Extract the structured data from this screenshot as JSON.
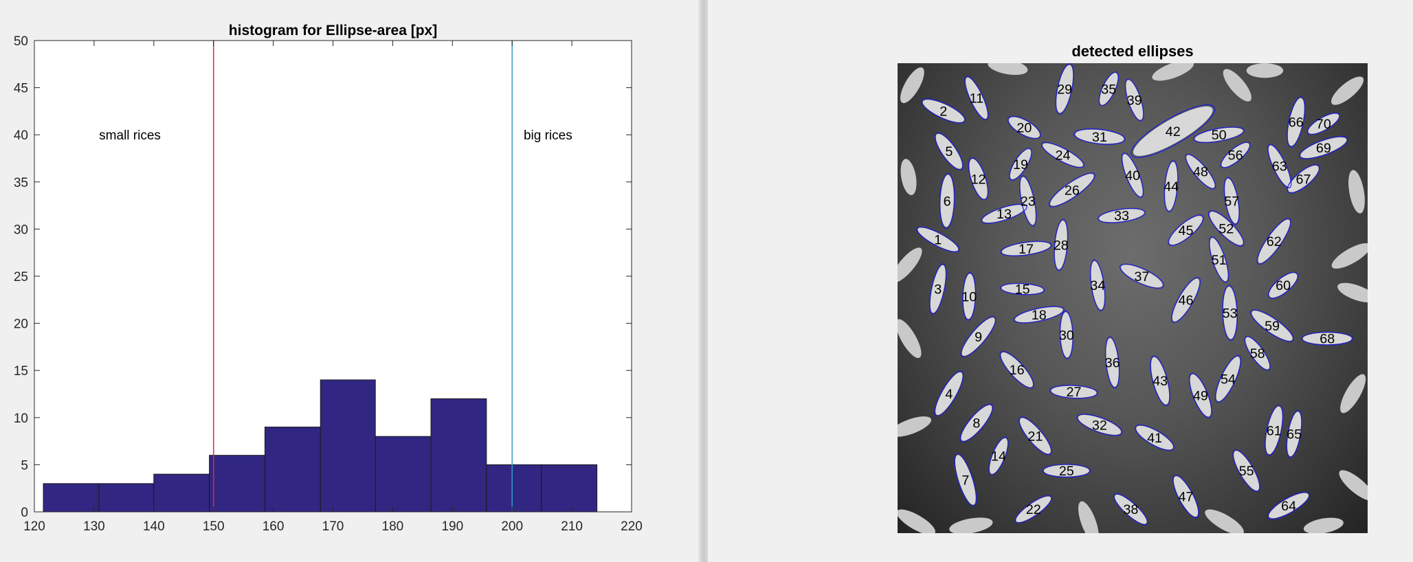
{
  "chart_data": [
    {
      "type": "bar",
      "title": "histogram for Ellipse-area [px]",
      "xlim": [
        120,
        220
      ],
      "ylim": [
        0,
        50
      ],
      "xticks": [
        120,
        130,
        140,
        150,
        160,
        170,
        180,
        190,
        200,
        210,
        220
      ],
      "yticks": [
        0,
        5,
        10,
        15,
        20,
        25,
        30,
        35,
        40,
        45,
        50
      ],
      "bins": [
        {
          "start": 121.5,
          "end": 130.8,
          "count": 3
        },
        {
          "start": 130.8,
          "end": 140.0,
          "count": 3
        },
        {
          "start": 140.0,
          "end": 149.3,
          "count": 4
        },
        {
          "start": 149.3,
          "end": 158.6,
          "count": 6
        },
        {
          "start": 158.6,
          "end": 167.9,
          "count": 9
        },
        {
          "start": 167.9,
          "end": 177.1,
          "count": 14
        },
        {
          "start": 177.1,
          "end": 186.4,
          "count": 8
        },
        {
          "start": 186.4,
          "end": 195.7,
          "count": 12
        },
        {
          "start": 195.7,
          "end": 204.9,
          "count": 5
        },
        {
          "start": 204.9,
          "end": 214.2,
          "count": 5
        }
      ],
      "bar_color": "#312783",
      "threshold_lines": [
        {
          "x": 150,
          "color": "#e8282a"
        },
        {
          "x": 200,
          "color": "#2b9fcf"
        }
      ],
      "annotations": [
        {
          "text": "small rices",
          "x": 136,
          "y": 40
        },
        {
          "text": "big rices",
          "x": 206,
          "y": 40
        }
      ],
      "grid": false
    },
    {
      "type": "image",
      "title": "detected ellipses",
      "ellipse_color": "#1c1ce0",
      "image_size": [
        256,
        256
      ],
      "ellipses": [
        {
          "id": "1",
          "x": 22,
          "y": 96,
          "rx": 13,
          "ry": 3.5,
          "angle": 28
        },
        {
          "id": "2",
          "x": 25,
          "y": 26,
          "rx": 13,
          "ry": 4,
          "angle": 25
        },
        {
          "id": "3",
          "x": 22,
          "y": 123,
          "rx": 14,
          "ry": 3.5,
          "angle": -78
        },
        {
          "id": "4",
          "x": 28,
          "y": 180,
          "rx": 14,
          "ry": 4,
          "angle": -60
        },
        {
          "id": "5",
          "x": 28,
          "y": 48,
          "rx": 12,
          "ry": 4,
          "angle": 55
        },
        {
          "id": "6",
          "x": 27,
          "y": 75,
          "rx": 15,
          "ry": 4,
          "angle": -88
        },
        {
          "id": "7",
          "x": 37,
          "y": 227,
          "rx": 15,
          "ry": 4,
          "angle": 72
        },
        {
          "id": "8",
          "x": 43,
          "y": 196,
          "rx": 13,
          "ry": 4,
          "angle": -50
        },
        {
          "id": "9",
          "x": 44,
          "y": 149,
          "rx": 14,
          "ry": 4,
          "angle": -50
        },
        {
          "id": "10",
          "x": 39,
          "y": 127,
          "rx": 13,
          "ry": 3.5,
          "angle": -88
        },
        {
          "id": "11",
          "x": 43,
          "y": 19,
          "rx": 13,
          "ry": 3.5,
          "angle": 65
        },
        {
          "id": "12",
          "x": 44,
          "y": 63,
          "rx": 12,
          "ry": 4,
          "angle": 72
        },
        {
          "id": "13",
          "x": 58,
          "y": 82,
          "rx": 13,
          "ry": 3.5,
          "angle": -18
        },
        {
          "id": "14",
          "x": 55,
          "y": 214,
          "rx": 11,
          "ry": 3.5,
          "angle": -68
        },
        {
          "id": "15",
          "x": 68,
          "y": 123,
          "rx": 12,
          "ry": 3,
          "angle": 3
        },
        {
          "id": "16",
          "x": 65,
          "y": 167,
          "rx": 13,
          "ry": 4,
          "angle": 48
        },
        {
          "id": "17",
          "x": 70,
          "y": 101,
          "rx": 14,
          "ry": 3.5,
          "angle": -8
        },
        {
          "id": "18",
          "x": 77,
          "y": 137,
          "rx": 14,
          "ry": 3.5,
          "angle": -12
        },
        {
          "id": "19",
          "x": 67,
          "y": 55,
          "rx": 10,
          "ry": 3.5,
          "angle": -58
        },
        {
          "id": "20",
          "x": 69,
          "y": 35,
          "rx": 10,
          "ry": 4,
          "angle": 30
        },
        {
          "id": "21",
          "x": 75,
          "y": 203,
          "rx": 13,
          "ry": 4,
          "angle": 50
        },
        {
          "id": "22",
          "x": 74,
          "y": 243,
          "rx": 12,
          "ry": 3.5,
          "angle": -35
        },
        {
          "id": "23",
          "x": 71,
          "y": 75,
          "rx": 14,
          "ry": 3.5,
          "angle": 78
        },
        {
          "id": "24",
          "x": 90,
          "y": 50,
          "rx": 13,
          "ry": 3.5,
          "angle": 28
        },
        {
          "id": "25",
          "x": 92,
          "y": 222,
          "rx": 13,
          "ry": 3.5,
          "angle": 0
        },
        {
          "id": "26",
          "x": 95,
          "y": 69,
          "rx": 15,
          "ry": 4,
          "angle": -35
        },
        {
          "id": "27",
          "x": 96,
          "y": 179,
          "rx": 13,
          "ry": 3.5,
          "angle": 3
        },
        {
          "id": "28",
          "x": 89,
          "y": 99,
          "rx": 14,
          "ry": 3.5,
          "angle": -85
        },
        {
          "id": "29",
          "x": 91,
          "y": 14,
          "rx": 14,
          "ry": 4,
          "angle": -78
        },
        {
          "id": "30",
          "x": 92,
          "y": 148,
          "rx": 13,
          "ry": 3.5,
          "angle": 88
        },
        {
          "id": "31",
          "x": 110,
          "y": 40,
          "rx": 14,
          "ry": 4,
          "angle": 6
        },
        {
          "id": "32",
          "x": 110,
          "y": 197,
          "rx": 13,
          "ry": 4,
          "angle": 20
        },
        {
          "id": "33",
          "x": 122,
          "y": 83,
          "rx": 13,
          "ry": 3.5,
          "angle": -8
        },
        {
          "id": "34",
          "x": 109,
          "y": 121,
          "rx": 14,
          "ry": 3.5,
          "angle": 82
        },
        {
          "id": "35",
          "x": 115,
          "y": 14,
          "rx": 10,
          "ry": 3.5,
          "angle": -65
        },
        {
          "id": "36",
          "x": 117,
          "y": 163,
          "rx": 14,
          "ry": 3.5,
          "angle": 84
        },
        {
          "id": "37",
          "x": 133,
          "y": 116,
          "rx": 13,
          "ry": 4,
          "angle": 25
        },
        {
          "id": "38",
          "x": 127,
          "y": 243,
          "rx": 12,
          "ry": 3.5,
          "angle": 42
        },
        {
          "id": "39",
          "x": 129,
          "y": 20,
          "rx": 12,
          "ry": 3.5,
          "angle": 72
        },
        {
          "id": "40",
          "x": 128,
          "y": 61,
          "rx": 13,
          "ry": 3.5,
          "angle": 68
        },
        {
          "id": "41",
          "x": 140,
          "y": 204,
          "rx": 12,
          "ry": 4,
          "angle": 30
        },
        {
          "id": "42",
          "x": 150,
          "y": 37,
          "rx": 26,
          "ry": 7,
          "angle": -30
        },
        {
          "id": "43",
          "x": 143,
          "y": 173,
          "rx": 14,
          "ry": 4,
          "angle": 75
        },
        {
          "id": "44",
          "x": 149,
          "y": 67,
          "rx": 14,
          "ry": 3.5,
          "angle": -85
        },
        {
          "id": "45",
          "x": 157,
          "y": 91,
          "rx": 12,
          "ry": 4,
          "angle": -40
        },
        {
          "id": "46",
          "x": 157,
          "y": 129,
          "rx": 14,
          "ry": 4,
          "angle": -60
        },
        {
          "id": "47",
          "x": 157,
          "y": 236,
          "rx": 13,
          "ry": 4,
          "angle": 62
        },
        {
          "id": "48",
          "x": 165,
          "y": 59,
          "rx": 12,
          "ry": 3.5,
          "angle": 50
        },
        {
          "id": "49",
          "x": 165,
          "y": 181,
          "rx": 13,
          "ry": 4,
          "angle": 68
        },
        {
          "id": "50",
          "x": 175,
          "y": 39,
          "rx": 14,
          "ry": 3.5,
          "angle": -10
        },
        {
          "id": "51",
          "x": 175,
          "y": 107,
          "rx": 13,
          "ry": 3.5,
          "angle": 72
        },
        {
          "id": "52",
          "x": 179,
          "y": 90,
          "rx": 13,
          "ry": 4,
          "angle": 45
        },
        {
          "id": "53",
          "x": 181,
          "y": 136,
          "rx": 15,
          "ry": 4,
          "angle": 88
        },
        {
          "id": "54",
          "x": 180,
          "y": 172,
          "rx": 14,
          "ry": 4,
          "angle": -65
        },
        {
          "id": "55",
          "x": 190,
          "y": 222,
          "rx": 13,
          "ry": 4,
          "angle": 60
        },
        {
          "id": "56",
          "x": 184,
          "y": 50,
          "rx": 10,
          "ry": 3.5,
          "angle": -40
        },
        {
          "id": "57",
          "x": 182,
          "y": 75,
          "rx": 13,
          "ry": 3.5,
          "angle": 80
        },
        {
          "id": "58",
          "x": 196,
          "y": 158,
          "rx": 11,
          "ry": 3.5,
          "angle": 55
        },
        {
          "id": "59",
          "x": 204,
          "y": 143,
          "rx": 14,
          "ry": 4,
          "angle": 35
        },
        {
          "id": "60",
          "x": 210,
          "y": 121,
          "rx": 10,
          "ry": 4,
          "angle": -40
        },
        {
          "id": "61",
          "x": 205,
          "y": 200,
          "rx": 14,
          "ry": 4,
          "angle": -78
        },
        {
          "id": "62",
          "x": 205,
          "y": 97,
          "rx": 15,
          "ry": 4,
          "angle": -55
        },
        {
          "id": "63",
          "x": 208,
          "y": 56,
          "rx": 13,
          "ry": 3.5,
          "angle": 65
        },
        {
          "id": "64",
          "x": 213,
          "y": 241,
          "rx": 13,
          "ry": 4,
          "angle": -30
        },
        {
          "id": "65",
          "x": 216,
          "y": 202,
          "rx": 13,
          "ry": 3.5,
          "angle": -80
        },
        {
          "id": "66",
          "x": 217,
          "y": 32,
          "rx": 14,
          "ry": 4,
          "angle": -78
        },
        {
          "id": "67",
          "x": 221,
          "y": 63,
          "rx": 11,
          "ry": 4,
          "angle": -40
        },
        {
          "id": "68",
          "x": 234,
          "y": 150,
          "rx": 14,
          "ry": 3.5,
          "angle": 0
        },
        {
          "id": "69",
          "x": 232,
          "y": 46,
          "rx": 14,
          "ry": 4,
          "angle": -20
        },
        {
          "id": "70",
          "x": 232,
          "y": 33,
          "rx": 10,
          "ry": 3.5,
          "angle": -30
        }
      ],
      "unlabeled_grains": [
        {
          "x": 8,
          "y": 12,
          "rx": 11,
          "ry": 4,
          "angle": -60
        },
        {
          "x": 6,
          "y": 62,
          "rx": 10,
          "ry": 4,
          "angle": 80
        },
        {
          "x": 5,
          "y": 110,
          "rx": 12,
          "ry": 4,
          "angle": -50
        },
        {
          "x": 6,
          "y": 150,
          "rx": 12,
          "ry": 4,
          "angle": 60
        },
        {
          "x": 7,
          "y": 198,
          "rx": 12,
          "ry": 4,
          "angle": -20
        },
        {
          "x": 10,
          "y": 250,
          "rx": 12,
          "ry": 4,
          "angle": 30
        },
        {
          "x": 40,
          "y": 252,
          "rx": 12,
          "ry": 4,
          "angle": -10
        },
        {
          "x": 60,
          "y": 2,
          "rx": 11,
          "ry": 4,
          "angle": 10
        },
        {
          "x": 104,
          "y": 250,
          "rx": 12,
          "ry": 4,
          "angle": 70
        },
        {
          "x": 150,
          "y": 4,
          "rx": 12,
          "ry": 4,
          "angle": -20
        },
        {
          "x": 178,
          "y": 250,
          "rx": 12,
          "ry": 4,
          "angle": 30
        },
        {
          "x": 185,
          "y": 12,
          "rx": 11,
          "ry": 4,
          "angle": 50
        },
        {
          "x": 200,
          "y": 4,
          "rx": 10,
          "ry": 4,
          "angle": 0
        },
        {
          "x": 245,
          "y": 15,
          "rx": 11,
          "ry": 4,
          "angle": -40
        },
        {
          "x": 250,
          "y": 70,
          "rx": 12,
          "ry": 4,
          "angle": 80
        },
        {
          "x": 247,
          "y": 105,
          "rx": 12,
          "ry": 4,
          "angle": -30
        },
        {
          "x": 250,
          "y": 125,
          "rx": 11,
          "ry": 4,
          "angle": 20
        },
        {
          "x": 248,
          "y": 180,
          "rx": 12,
          "ry": 4,
          "angle": -60
        },
        {
          "x": 250,
          "y": 230,
          "rx": 12,
          "ry": 4,
          "angle": 40
        },
        {
          "x": 232,
          "y": 252,
          "rx": 11,
          "ry": 4,
          "angle": -10
        }
      ]
    }
  ]
}
